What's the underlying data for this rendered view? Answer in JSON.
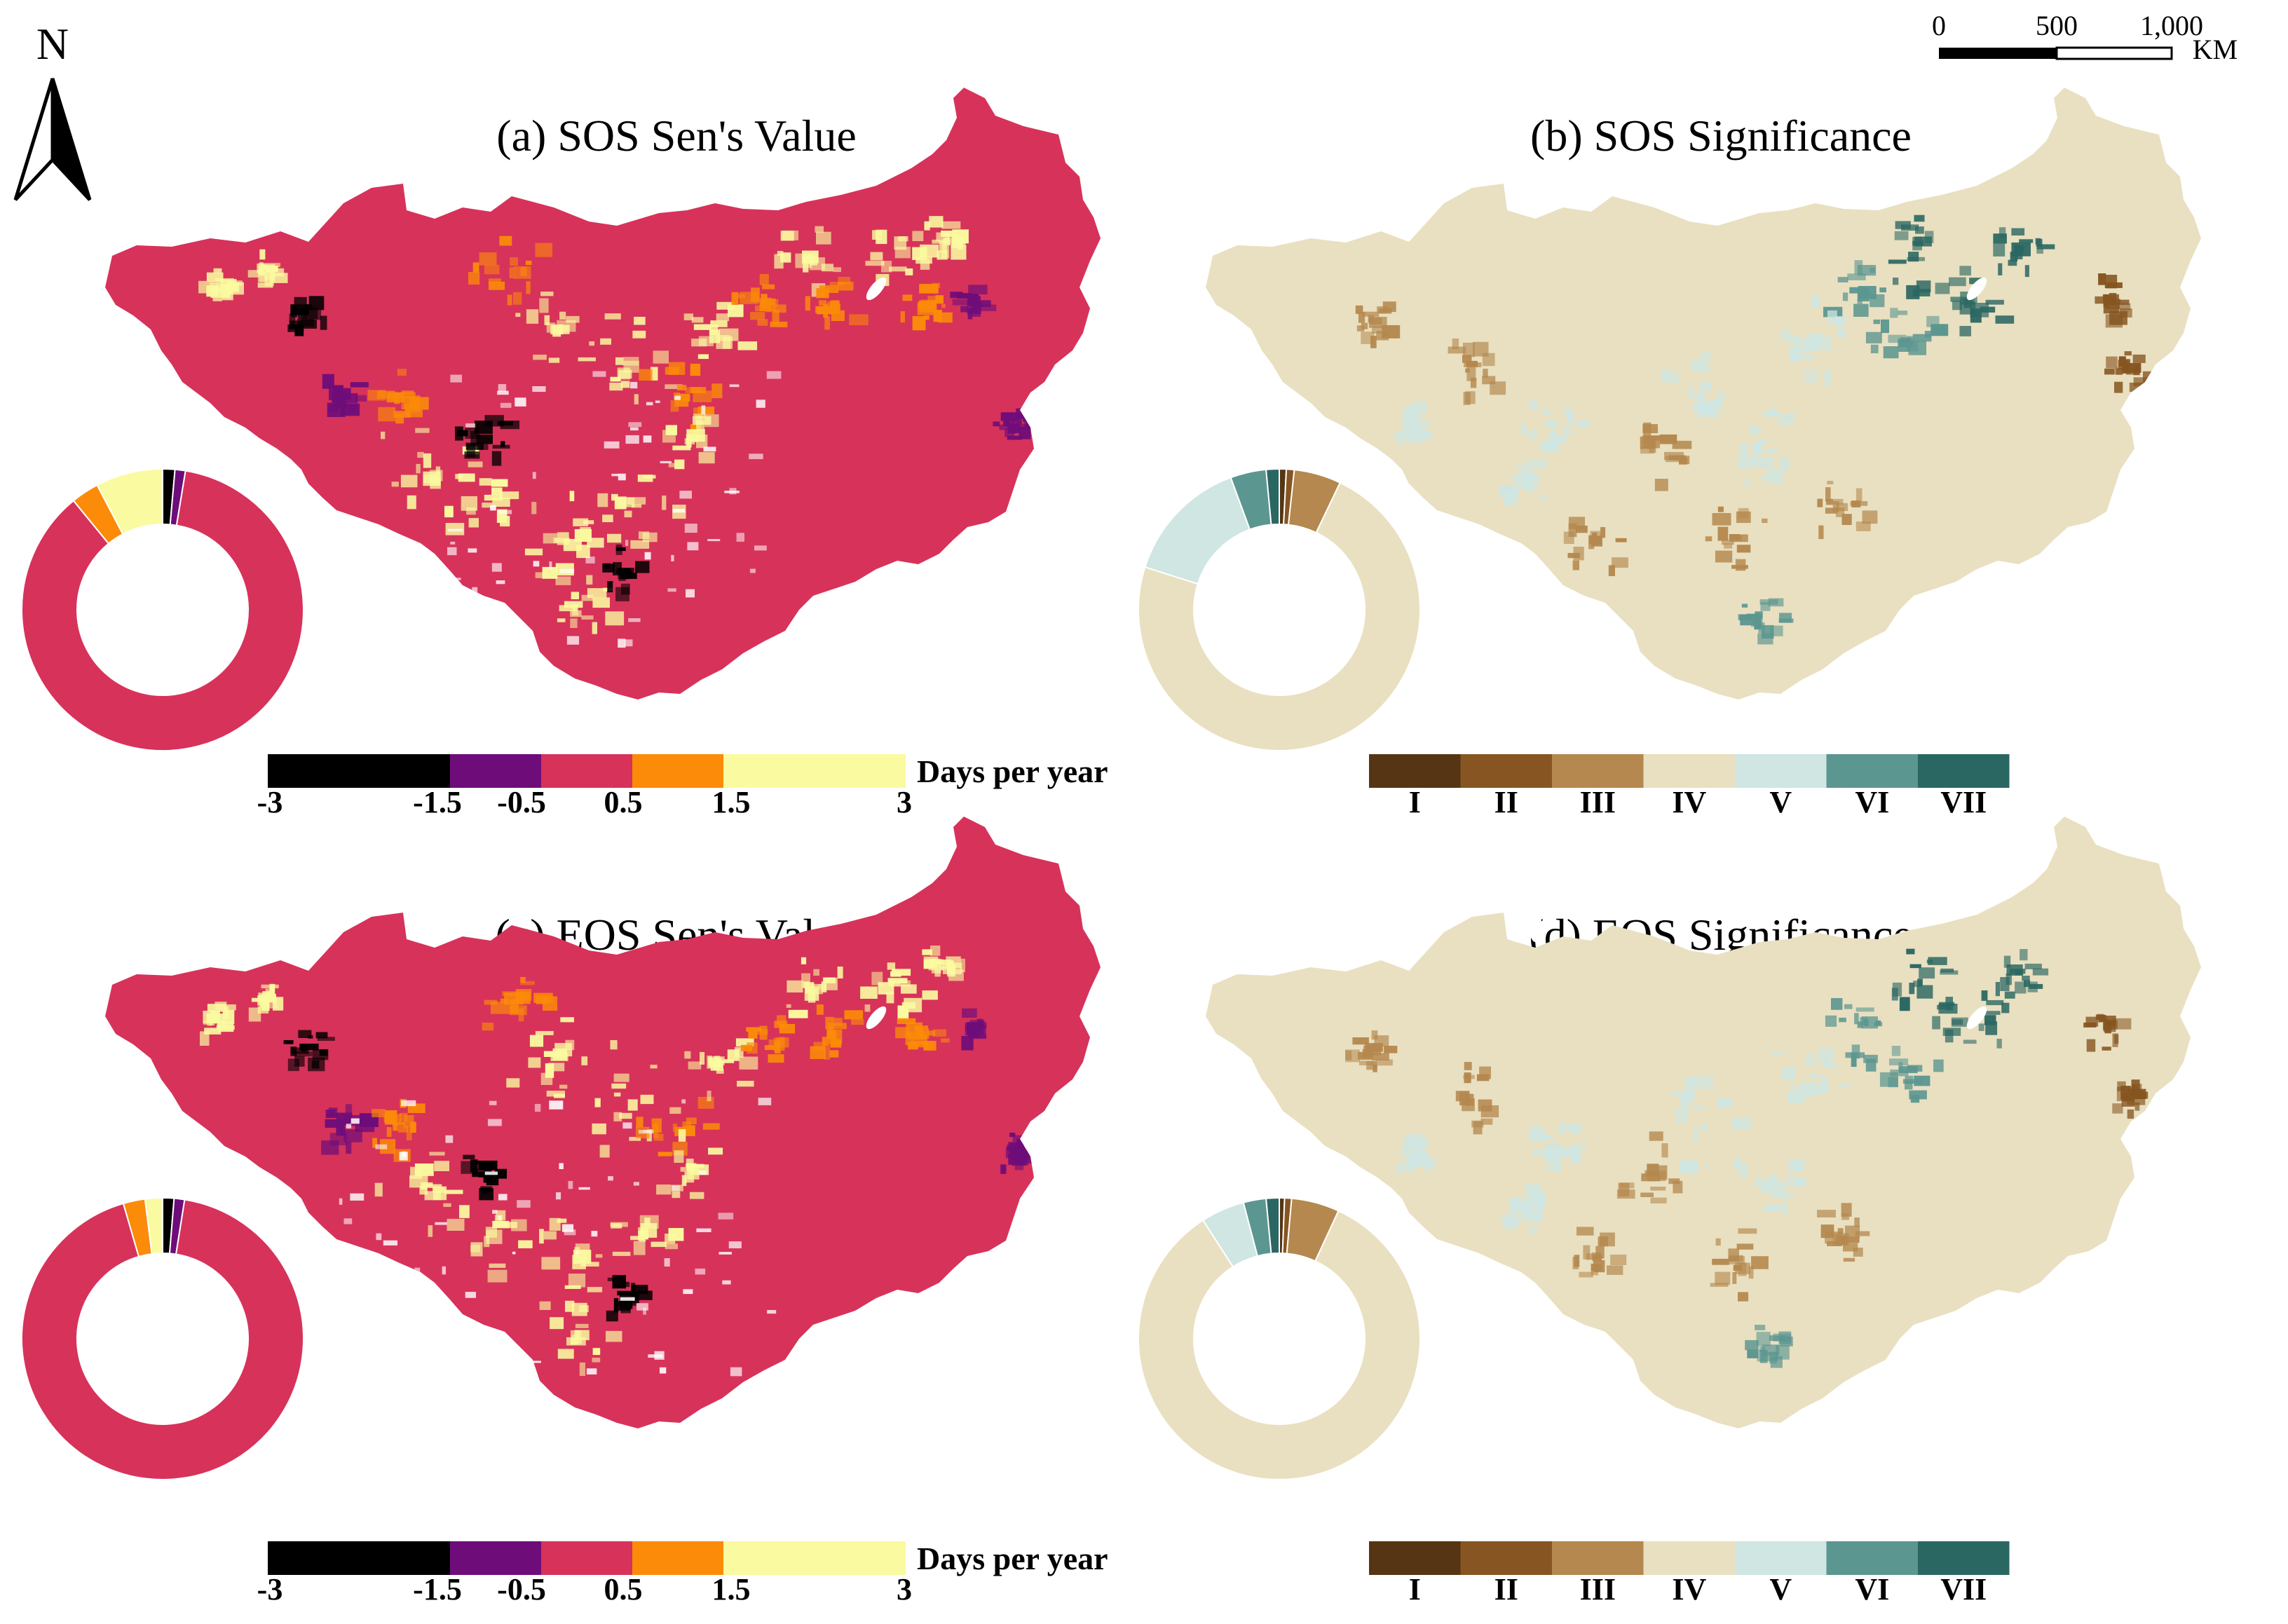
{
  "north_arrow": {
    "label": "N"
  },
  "scale_bar": {
    "ticks": [
      "0",
      "500",
      "1,000"
    ],
    "unit": "KM"
  },
  "panels": [
    {
      "id": "a",
      "title": "(a) SOS Sen's Value",
      "kind": "sen",
      "legend": {
        "unit": "Days per year",
        "labels": [
          "-3",
          "-1.5",
          "-0.5",
          "0.5",
          "1.5",
          "3"
        ],
        "colors": [
          "#000000",
          "#6e0d7a",
          "#d7325a",
          "#fb8b08",
          "#fafaa0"
        ]
      },
      "donut": [
        {
          "color": "#000000",
          "pct": 1.4
        },
        {
          "color": "#6e0d7a",
          "pct": 1.2
        },
        {
          "color": "#d7325a",
          "pct": 86.5
        },
        {
          "color": "#fb8b08",
          "pct": 3.2
        },
        {
          "color": "#fafaa0",
          "pct": 7.7
        }
      ]
    },
    {
      "id": "b",
      "title": "(b) SOS Significance",
      "kind": "sig",
      "legend": {
        "unit": "",
        "labels": [
          "I",
          "II",
          "III",
          "IV",
          "V",
          "VI",
          "VII"
        ],
        "colors": [
          "#553514",
          "#865521",
          "#b4884e",
          "#e9e0c1",
          "#cfe6e2",
          "#5c9690",
          "#2b6762"
        ]
      },
      "donut": [
        {
          "color": "#553514",
          "pct": 0.8
        },
        {
          "color": "#865521",
          "pct": 0.9
        },
        {
          "color": "#b4884e",
          "pct": 5.4
        },
        {
          "color": "#e9e0c1",
          "pct": 72.8
        },
        {
          "color": "#cfe6e2",
          "pct": 14.5
        },
        {
          "color": "#5c9690",
          "pct": 4.1
        },
        {
          "color": "#2b6762",
          "pct": 1.5
        }
      ]
    },
    {
      "id": "c",
      "title": "(c) EOS Sen's Value",
      "kind": "sen",
      "legend": {
        "unit": "Days per year",
        "labels": [
          "-3",
          "-1.5",
          "-0.5",
          "0.5",
          "1.5",
          "3"
        ],
        "colors": [
          "#000000",
          "#6e0d7a",
          "#d7325a",
          "#fb8b08",
          "#fafaa0"
        ]
      },
      "donut": [
        {
          "color": "#000000",
          "pct": 1.3
        },
        {
          "color": "#6e0d7a",
          "pct": 1.2
        },
        {
          "color": "#d7325a",
          "pct": 93.0
        },
        {
          "color": "#fb8b08",
          "pct": 2.5
        },
        {
          "color": "#fafaa0",
          "pct": 2.0
        }
      ]
    },
    {
      "id": "d",
      "title": "(d) EOS Significance",
      "kind": "sig",
      "legend": {
        "unit": "",
        "labels": [
          "I",
          "II",
          "III",
          "IV",
          "V",
          "VI",
          "VII"
        ],
        "colors": [
          "#553514",
          "#865521",
          "#b4884e",
          "#e9e0c1",
          "#cfe6e2",
          "#5c9690",
          "#2b6762"
        ]
      },
      "donut": [
        {
          "color": "#553514",
          "pct": 0.6
        },
        {
          "color": "#865521",
          "pct": 0.8
        },
        {
          "color": "#b4884e",
          "pct": 5.5
        },
        {
          "color": "#e9e0c1",
          "pct": 84.0
        },
        {
          "color": "#cfe6e2",
          "pct": 5.0
        },
        {
          "color": "#5c9690",
          "pct": 2.6
        },
        {
          "color": "#2b6762",
          "pct": 1.5
        }
      ]
    }
  ]
}
